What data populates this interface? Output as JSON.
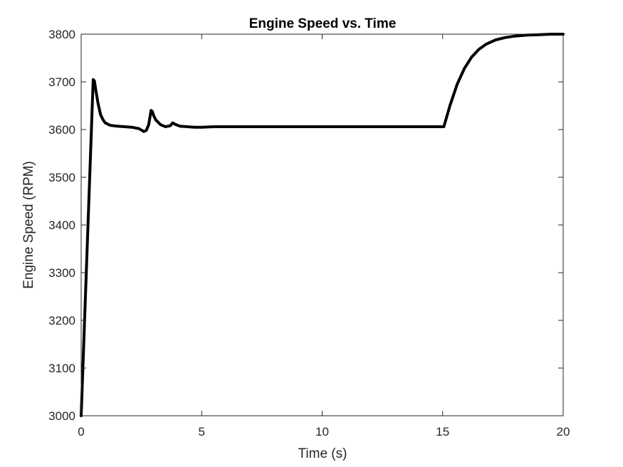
{
  "chart_data": {
    "type": "line",
    "title": "Engine Speed vs. Time",
    "xlabel": "Time (s)",
    "ylabel": "Engine Speed (RPM)",
    "xlim": [
      0,
      20
    ],
    "ylim": [
      3000,
      3800
    ],
    "xticks": [
      0,
      5,
      10,
      15,
      20
    ],
    "yticks": [
      3000,
      3100,
      3200,
      3300,
      3400,
      3500,
      3600,
      3700,
      3800
    ],
    "grid": false,
    "line_color": "#000000",
    "series": [
      {
        "x": [
          0,
          0.5,
          0.55,
          0.6,
          0.7,
          0.8,
          0.9,
          1.0,
          1.2,
          1.5,
          1.8,
          2.1,
          2.4,
          2.6,
          2.7,
          2.8,
          2.9,
          2.95,
          3.0,
          3.1,
          3.3,
          3.5,
          3.7,
          3.8,
          3.9,
          4.1,
          4.4,
          4.7,
          5.0,
          5.5,
          10,
          15,
          15.05,
          15.3,
          15.6,
          15.9,
          16.2,
          16.5,
          16.8,
          17.2,
          17.6,
          18.0,
          18.5,
          19.0,
          19.5,
          20
        ],
        "y": [
          3000,
          3705,
          3702,
          3685,
          3655,
          3632,
          3621,
          3614,
          3609,
          3607,
          3606,
          3605,
          3602,
          3596,
          3598,
          3610,
          3640,
          3638,
          3630,
          3620,
          3610,
          3606,
          3608,
          3614,
          3611,
          3607,
          3606,
          3605,
          3605,
          3606,
          3606,
          3606,
          3606,
          3650,
          3695,
          3728,
          3752,
          3768,
          3779,
          3788,
          3793,
          3796,
          3798,
          3799,
          3800,
          3800
        ]
      }
    ]
  }
}
